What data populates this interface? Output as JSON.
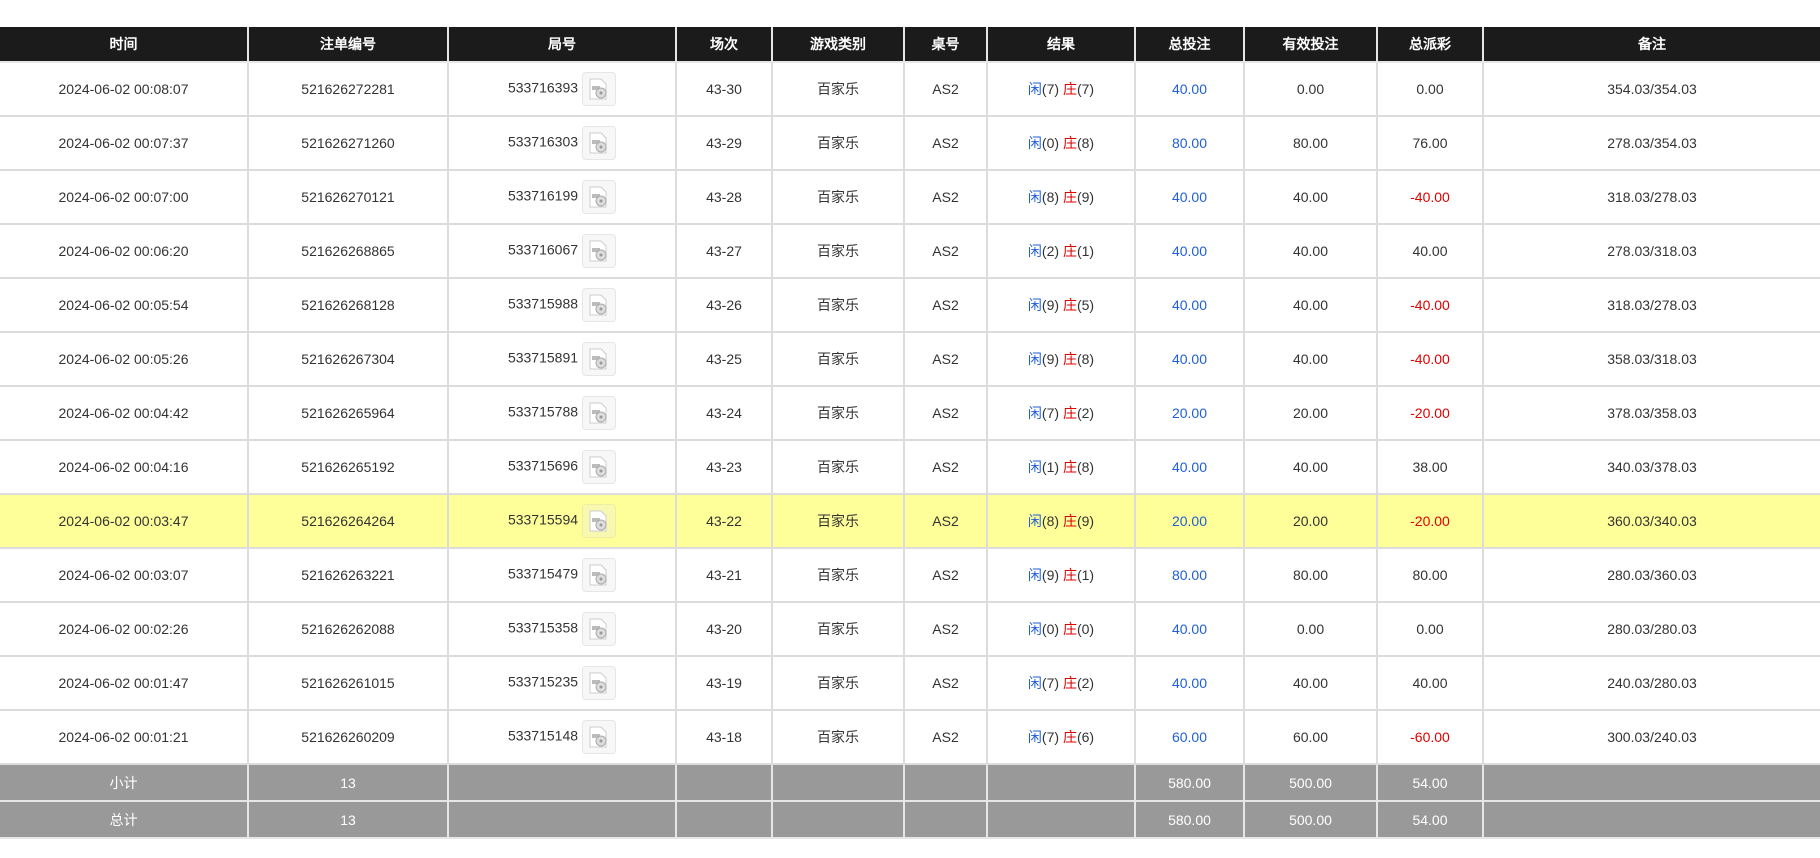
{
  "columns": [
    "时间",
    "注单编号",
    "局号",
    "场次",
    "游戏类别",
    "桌号",
    "结果",
    "总投注",
    "有效投注",
    "总派彩",
    "备注"
  ],
  "result_labels": {
    "player": "闲",
    "banker": "庄"
  },
  "colors": {
    "header_bg": "#1b1b1b",
    "highlight": "#ffff99",
    "summary_bg": "#999999",
    "blue": "#1f5fd6",
    "red": "#e00000"
  },
  "rows": [
    {
      "time": "2024-06-02 00:08:07",
      "bet_id": "521626272281",
      "round": "533716393",
      "shoe": "43-30",
      "game": "百家乐",
      "table": "AS2",
      "player": "(7)",
      "banker": "(7)",
      "total_bet": "40.00",
      "valid_bet": "0.00",
      "payout": "0.00",
      "payout_negative": false,
      "note": "354.03/354.03"
    },
    {
      "time": "2024-06-02 00:07:37",
      "bet_id": "521626271260",
      "round": "533716303",
      "shoe": "43-29",
      "game": "百家乐",
      "table": "AS2",
      "player": "(0)",
      "banker": "(8)",
      "total_bet": "80.00",
      "valid_bet": "80.00",
      "payout": "76.00",
      "payout_negative": false,
      "note": "278.03/354.03"
    },
    {
      "time": "2024-06-02 00:07:00",
      "bet_id": "521626270121",
      "round": "533716199",
      "shoe": "43-28",
      "game": "百家乐",
      "table": "AS2",
      "player": "(8)",
      "banker": "(9)",
      "total_bet": "40.00",
      "valid_bet": "40.00",
      "payout": "-40.00",
      "payout_negative": true,
      "note": "318.03/278.03"
    },
    {
      "time": "2024-06-02 00:06:20",
      "bet_id": "521626268865",
      "round": "533716067",
      "shoe": "43-27",
      "game": "百家乐",
      "table": "AS2",
      "player": "(2)",
      "banker": "(1)",
      "total_bet": "40.00",
      "valid_bet": "40.00",
      "payout": "40.00",
      "payout_negative": false,
      "note": "278.03/318.03"
    },
    {
      "time": "2024-06-02 00:05:54",
      "bet_id": "521626268128",
      "round": "533715988",
      "shoe": "43-26",
      "game": "百家乐",
      "table": "AS2",
      "player": "(9)",
      "banker": "(5)",
      "total_bet": "40.00",
      "valid_bet": "40.00",
      "payout": "-40.00",
      "payout_negative": true,
      "note": "318.03/278.03"
    },
    {
      "time": "2024-06-02 00:05:26",
      "bet_id": "521626267304",
      "round": "533715891",
      "shoe": "43-25",
      "game": "百家乐",
      "table": "AS2",
      "player": "(9)",
      "banker": "(8)",
      "total_bet": "40.00",
      "valid_bet": "40.00",
      "payout": "-40.00",
      "payout_negative": true,
      "note": "358.03/318.03"
    },
    {
      "time": "2024-06-02 00:04:42",
      "bet_id": "521626265964",
      "round": "533715788",
      "shoe": "43-24",
      "game": "百家乐",
      "table": "AS2",
      "player": "(7)",
      "banker": "(2)",
      "total_bet": "20.00",
      "valid_bet": "20.00",
      "payout": "-20.00",
      "payout_negative": true,
      "note": "378.03/358.03"
    },
    {
      "time": "2024-06-02 00:04:16",
      "bet_id": "521626265192",
      "round": "533715696",
      "shoe": "43-23",
      "game": "百家乐",
      "table": "AS2",
      "player": "(1)",
      "banker": "(8)",
      "total_bet": "40.00",
      "valid_bet": "40.00",
      "payout": "38.00",
      "payout_negative": false,
      "note": "340.03/378.03"
    },
    {
      "time": "2024-06-02 00:03:47",
      "bet_id": "521626264264",
      "round": "533715594",
      "shoe": "43-22",
      "game": "百家乐",
      "table": "AS2",
      "player": "(8)",
      "banker": "(9)",
      "total_bet": "20.00",
      "valid_bet": "20.00",
      "payout": "-20.00",
      "payout_negative": true,
      "note": "360.03/340.03",
      "highlighted": true
    },
    {
      "time": "2024-06-02 00:03:07",
      "bet_id": "521626263221",
      "round": "533715479",
      "shoe": "43-21",
      "game": "百家乐",
      "table": "AS2",
      "player": "(9)",
      "banker": "(1)",
      "total_bet": "80.00",
      "valid_bet": "80.00",
      "payout": "80.00",
      "payout_negative": false,
      "note": "280.03/360.03"
    },
    {
      "time": "2024-06-02 00:02:26",
      "bet_id": "521626262088",
      "round": "533715358",
      "shoe": "43-20",
      "game": "百家乐",
      "table": "AS2",
      "player": "(0)",
      "banker": "(0)",
      "total_bet": "40.00",
      "valid_bet": "0.00",
      "payout": "0.00",
      "payout_negative": false,
      "note": "280.03/280.03"
    },
    {
      "time": "2024-06-02 00:01:47",
      "bet_id": "521626261015",
      "round": "533715235",
      "shoe": "43-19",
      "game": "百家乐",
      "table": "AS2",
      "player": "(7)",
      "banker": "(2)",
      "total_bet": "40.00",
      "valid_bet": "40.00",
      "payout": "40.00",
      "payout_negative": false,
      "note": "240.03/280.03"
    },
    {
      "time": "2024-06-02 00:01:21",
      "bet_id": "521626260209",
      "round": "533715148",
      "shoe": "43-18",
      "game": "百家乐",
      "table": "AS2",
      "player": "(7)",
      "banker": "(6)",
      "total_bet": "60.00",
      "valid_bet": "60.00",
      "payout": "-60.00",
      "payout_negative": true,
      "note": "300.03/240.03"
    }
  ],
  "subtotal": {
    "label": "小计",
    "count": "13",
    "total_bet": "580.00",
    "valid_bet": "500.00",
    "payout": "54.00"
  },
  "total": {
    "label": "总计",
    "count": "13",
    "total_bet": "580.00",
    "valid_bet": "500.00",
    "payout": "54.00"
  }
}
